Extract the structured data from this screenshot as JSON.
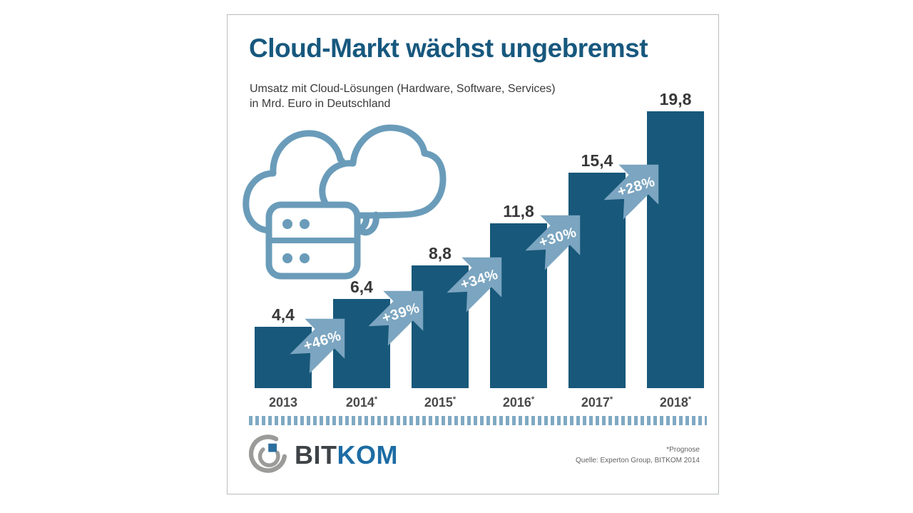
{
  "header": {
    "title": "Cloud-Markt wächst ungebremst",
    "subtitle_line1": "Umsatz mit Cloud-Lösungen (Hardware, Software, Services)",
    "subtitle_line2": "in Mrd. Euro in Deutschland"
  },
  "chart_data": {
    "type": "bar",
    "title": "Cloud-Markt wächst ungebremst",
    "subtitle": "Umsatz mit Cloud-Lösungen (Hardware, Software, Services) in Mrd. Euro in Deutschland",
    "unit": "Mrd. Euro",
    "categories": [
      "2013",
      "2014*",
      "2015*",
      "2016*",
      "2017*",
      "2018*"
    ],
    "values": [
      4.4,
      6.4,
      8.8,
      11.8,
      15.4,
      19.8
    ],
    "value_labels": [
      "4,4",
      "6,4",
      "8,8",
      "11,8",
      "15,4",
      "19,8"
    ],
    "growth_labels": [
      "+46%",
      "+39%",
      "+34%",
      "+30%",
      "+28%"
    ],
    "ylim": [
      0,
      19.8
    ],
    "grid": false,
    "legend": false,
    "bar_color": "#18587a",
    "arrow_color": "#7ba5c0",
    "value_label_color": "#383838",
    "year_label_color": "#4a4a4a"
  },
  "icons": {
    "cloud_server_icon": "cloud-with-server-rack",
    "cloud_icon_color": "#6a9cba",
    "growth_arrow_icon": "up-right-arrow"
  },
  "footer": {
    "logo_bit": "BIT",
    "logo_kom": "KOM",
    "footnote": "*Prognose",
    "source": "Quelle: Experton Group, BITKOM 2014"
  },
  "colors": {
    "title": "#17587e",
    "bar": "#18587a",
    "arrow": "#7ba5c0",
    "dotted_line": "#7fa9c3",
    "logo_gray": "#9b9b9a",
    "logo_blue": "#2b6f9e"
  }
}
